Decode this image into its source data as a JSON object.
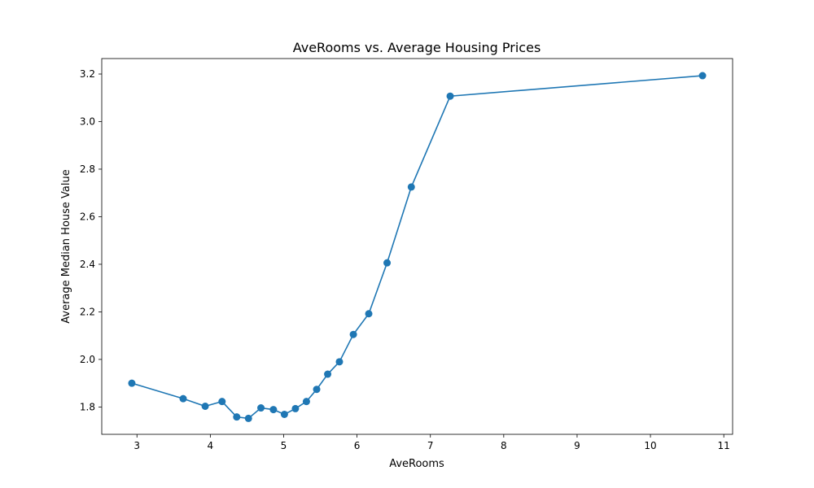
{
  "chart_data": {
    "type": "line",
    "title": "AveRooms vs. Average Housing Prices",
    "xlabel": "AveRooms",
    "ylabel": "Average Median House Value",
    "xlim": [
      2.52,
      11.12
    ],
    "ylim": [
      1.685,
      3.265
    ],
    "xticks": [
      3,
      4,
      5,
      6,
      7,
      8,
      9,
      10,
      11
    ],
    "yticks": [
      1.8,
      2.0,
      2.2,
      2.4,
      2.6,
      2.8,
      3.0,
      3.2
    ],
    "xtick_labels": [
      "3",
      "4",
      "5",
      "6",
      "7",
      "8",
      "9",
      "10",
      "11"
    ],
    "ytick_labels": [
      "1.8",
      "2.0",
      "2.2",
      "2.4",
      "2.6",
      "2.8",
      "3.0",
      "3.2"
    ],
    "grid": false,
    "color": "#1f77b4",
    "marker": "circle",
    "series": [
      {
        "x": [
          2.93,
          3.63,
          3.93,
          4.16,
          4.36,
          4.52,
          4.69,
          4.86,
          5.01,
          5.16,
          5.31,
          5.45,
          5.6,
          5.76,
          5.95,
          6.16,
          6.41,
          6.74,
          7.27,
          10.71
        ],
        "y": [
          1.9,
          1.835,
          1.803,
          1.823,
          1.758,
          1.752,
          1.796,
          1.789,
          1.769,
          1.793,
          1.823,
          1.874,
          1.938,
          1.99,
          2.105,
          2.192,
          2.406,
          2.725,
          3.107,
          3.193
        ]
      }
    ]
  }
}
